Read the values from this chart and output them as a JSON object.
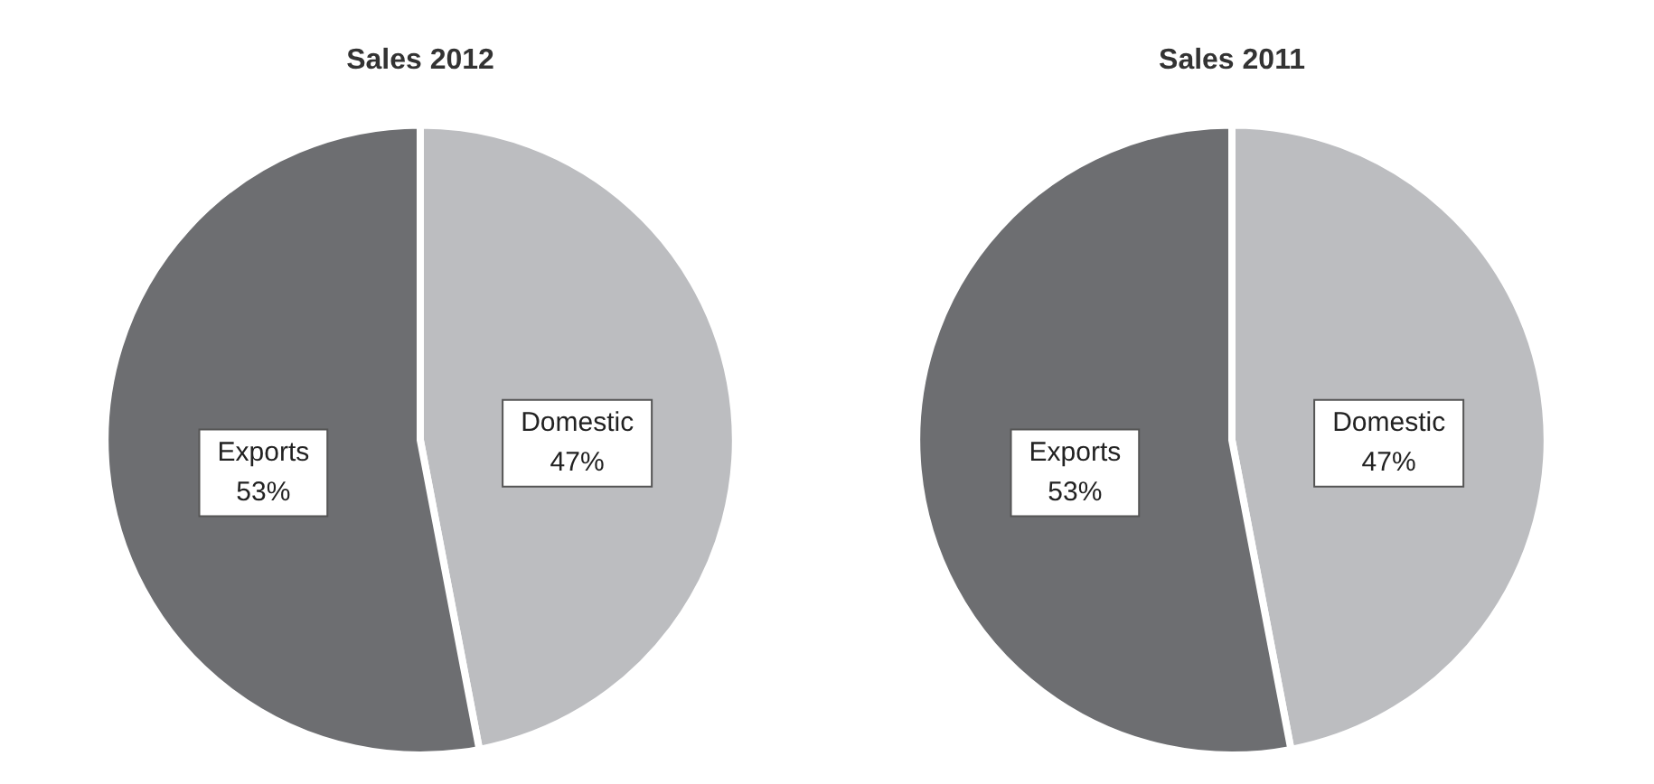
{
  "chart_data": [
    {
      "type": "pie",
      "title": "Sales 2012",
      "categories": [
        "Domestic",
        "Exports"
      ],
      "values": [
        47,
        53
      ],
      "value_labels": [
        "47%",
        "53%"
      ],
      "colors": [
        "#bcbdc0",
        "#6d6e71"
      ]
    },
    {
      "type": "pie",
      "title": "Sales 2011",
      "categories": [
        "Domestic",
        "Exports"
      ],
      "values": [
        47,
        53
      ],
      "value_labels": [
        "47%",
        "53%"
      ],
      "colors": [
        "#bcbdc0",
        "#6d6e71"
      ]
    }
  ]
}
